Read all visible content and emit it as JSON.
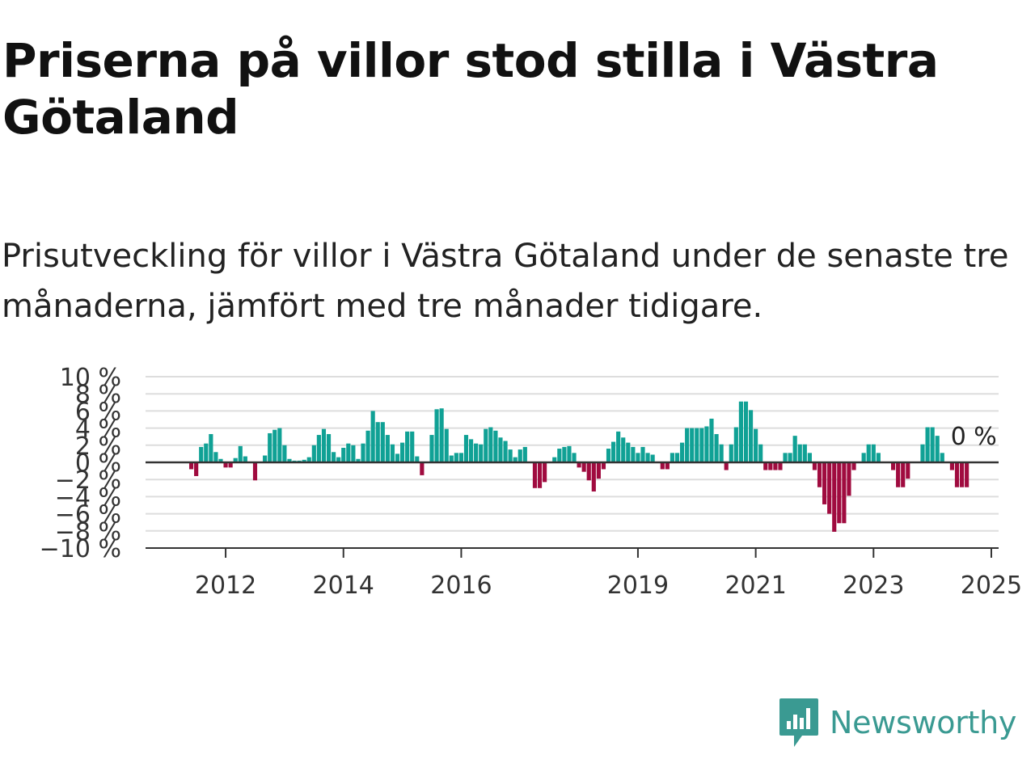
{
  "title": "Priserna på villor stod stilla i Västra Götaland",
  "subtitle": "Prisutveckling för villor i Västra Götaland under de senaste tre månaderna, jämfört med tre månader tidigare.",
  "brand": {
    "name": "Newsworthy",
    "color": "#3a9a92",
    "icon": "newsworthy-logo-icon"
  },
  "colors": {
    "positive": "#10a195",
    "negative": "#a00b3f",
    "grid": "#dddddd",
    "axis": "#333333"
  },
  "chart_data": {
    "type": "bar",
    "ylabel": "",
    "ylim": [
      -10,
      10
    ],
    "yticks": [
      -10,
      -8,
      -6,
      -4,
      -2,
      0,
      2,
      4,
      6,
      8,
      10
    ],
    "ytick_labels": [
      "−10 %",
      "−8 %",
      "−6 %",
      "−4 %",
      "−2 %",
      "0 %",
      "2 %",
      "4 %",
      "6 %",
      "8 %",
      "10 %"
    ],
    "xticks": [
      "2012",
      "2014",
      "2016",
      "2019",
      "2021",
      "2023",
      "2025"
    ],
    "start": "2011-05",
    "frequency": "monthly",
    "grid": true,
    "annotation": "0 %",
    "values": [
      -0.8,
      -1.6,
      1.8,
      2.2,
      3.3,
      1.2,
      0.4,
      -0.6,
      -0.6,
      0.5,
      1.9,
      0.7,
      0,
      -2.1,
      0,
      0.8,
      3.4,
      3.8,
      4.0,
      2.0,
      0.4,
      0.2,
      0.2,
      0.3,
      0.6,
      2.0,
      3.2,
      3.9,
      3.3,
      1.2,
      0.6,
      1.7,
      2.2,
      2.0,
      0.4,
      2.2,
      3.7,
      6.0,
      4.7,
      4.7,
      3.2,
      2.1,
      1.0,
      2.3,
      3.6,
      3.6,
      0.7,
      -1.5,
      0,
      3.2,
      6.2,
      6.3,
      3.9,
      0.8,
      1.1,
      1.1,
      3.2,
      2.7,
      2.2,
      2.1,
      3.9,
      4.1,
      3.7,
      2.9,
      2.5,
      1.5,
      0.6,
      1.5,
      1.8,
      0,
      -3.0,
      -3.0,
      -2.3,
      0,
      0.6,
      1.6,
      1.8,
      1.9,
      1.1,
      -0.6,
      -1.1,
      -2.1,
      -3.4,
      -1.9,
      -0.8,
      1.6,
      2.4,
      3.6,
      2.9,
      2.3,
      1.8,
      1.1,
      1.8,
      1.1,
      0.9,
      0,
      -0.8,
      -0.8,
      1.1,
      1.1,
      2.3,
      4.0,
      4.0,
      4.0,
      4.0,
      4.2,
      5.1,
      3.3,
      2.1,
      -0.9,
      2.1,
      4.1,
      7.1,
      7.1,
      6.1,
      3.9,
      2.1,
      -0.9,
      -0.9,
      -0.9,
      -0.9,
      1.1,
      1.1,
      3.1,
      2.1,
      2.1,
      1.1,
      -0.9,
      -2.9,
      -4.9,
      -6.0,
      -8.1,
      -7.1,
      -7.1,
      -3.9,
      -0.9,
      0,
      1.1,
      2.1,
      2.1,
      1.1,
      0,
      0,
      -0.9,
      -2.9,
      -2.9,
      -1.9,
      0,
      0,
      2.1,
      4.1,
      4.1,
      3.1,
      1.1,
      0,
      -0.9,
      -2.9,
      -2.9,
      -2.9,
      0
    ]
  }
}
